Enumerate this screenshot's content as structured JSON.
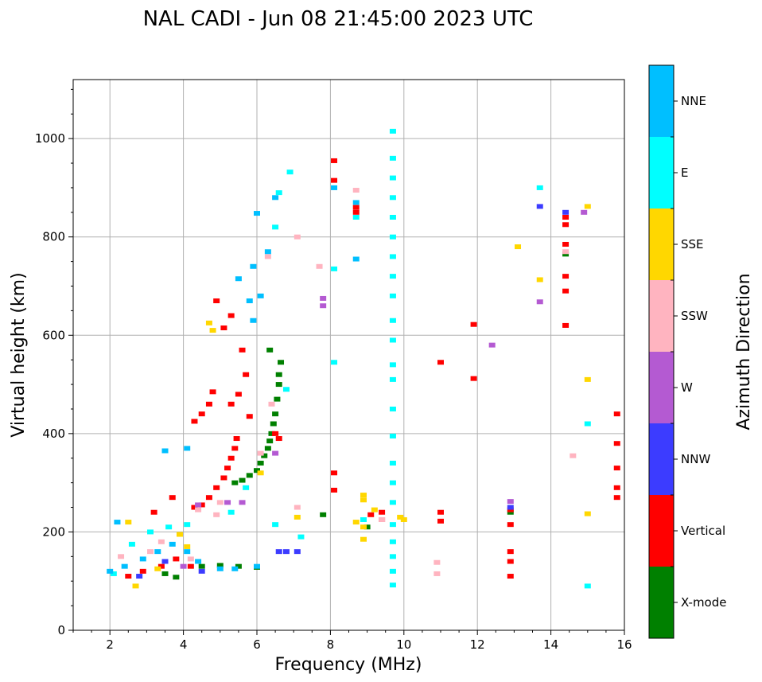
{
  "chart_data": {
    "type": "scatter",
    "title": "NAL CADI - Jun 08 21:45:00 2023 UTC",
    "xlabel": "Frequency (MHz)",
    "ylabel": "Virtual height (km)",
    "xlim": [
      1,
      16
    ],
    "ylim": [
      0,
      1120
    ],
    "xticks": [
      2,
      4,
      6,
      8,
      10,
      12,
      14,
      16
    ],
    "yticks": [
      0,
      200,
      400,
      600,
      800,
      1000
    ],
    "grid": true,
    "colorbar": {
      "label": "Azimuth Direction",
      "categories": [
        {
          "name": "X-mode",
          "color": "#008000"
        },
        {
          "name": "Vertical",
          "color": "#ff0000"
        },
        {
          "name": "NNW",
          "color": "#3c3cff"
        },
        {
          "name": "W",
          "color": "#b45ad2"
        },
        {
          "name": "SSW",
          "color": "#ffb4c0"
        },
        {
          "name": "SSE",
          "color": "#ffd700"
        },
        {
          "name": "E",
          "color": "#00ffff"
        },
        {
          "name": "NNE",
          "color": "#00bfff"
        }
      ]
    },
    "series": [
      {
        "name": "X-mode",
        "points": [
          [
            5.4,
            300
          ],
          [
            5.6,
            305
          ],
          [
            5.8,
            315
          ],
          [
            6.0,
            325
          ],
          [
            6.1,
            340
          ],
          [
            6.2,
            355
          ],
          [
            6.3,
            370
          ],
          [
            6.35,
            385
          ],
          [
            6.4,
            400
          ],
          [
            6.45,
            420
          ],
          [
            6.5,
            440
          ],
          [
            6.55,
            470
          ],
          [
            6.6,
            500
          ],
          [
            6.6,
            520
          ],
          [
            6.65,
            545
          ],
          [
            6.35,
            570
          ],
          [
            4.5,
            130
          ],
          [
            5.0,
            132
          ],
          [
            5.5,
            130
          ],
          [
            6.0,
            128
          ],
          [
            3.5,
            115
          ],
          [
            3.8,
            108
          ],
          [
            7.8,
            235
          ],
          [
            9.0,
            210
          ],
          [
            12.9,
            240
          ],
          [
            14.4,
            765
          ]
        ]
      },
      {
        "name": "Vertical",
        "points": [
          [
            4.3,
            250
          ],
          [
            4.5,
            255
          ],
          [
            4.7,
            270
          ],
          [
            4.9,
            290
          ],
          [
            5.1,
            310
          ],
          [
            5.2,
            330
          ],
          [
            5.3,
            350
          ],
          [
            5.4,
            370
          ],
          [
            5.45,
            390
          ],
          [
            4.3,
            425
          ],
          [
            4.5,
            440
          ],
          [
            4.7,
            460
          ],
          [
            4.8,
            485
          ],
          [
            5.3,
            460
          ],
          [
            5.5,
            480
          ],
          [
            5.7,
            520
          ],
          [
            5.3,
            640
          ],
          [
            5.1,
            615
          ],
          [
            4.9,
            670
          ],
          [
            5.6,
            570
          ],
          [
            5.8,
            435
          ],
          [
            3.7,
            270
          ],
          [
            3.2,
            240
          ],
          [
            2.5,
            110
          ],
          [
            2.9,
            120
          ],
          [
            3.4,
            130
          ],
          [
            3.8,
            145
          ],
          [
            4.2,
            130
          ],
          [
            6.5,
            400
          ],
          [
            6.6,
            390
          ],
          [
            8.1,
            320
          ],
          [
            8.1,
            285
          ],
          [
            8.1,
            915
          ],
          [
            8.1,
            955
          ],
          [
            8.7,
            850
          ],
          [
            8.7,
            860
          ],
          [
            9.1,
            235
          ],
          [
            9.4,
            225
          ],
          [
            9.4,
            240
          ],
          [
            11.0,
            240
          ],
          [
            11.0,
            222
          ],
          [
            11.9,
            512
          ],
          [
            11.9,
            622
          ],
          [
            11.0,
            545
          ],
          [
            12.9,
            245
          ],
          [
            12.9,
            215
          ],
          [
            12.9,
            160
          ],
          [
            12.9,
            140
          ],
          [
            12.9,
            110
          ],
          [
            14.4,
            840
          ],
          [
            14.4,
            825
          ],
          [
            14.4,
            785
          ],
          [
            14.4,
            720
          ],
          [
            14.4,
            690
          ],
          [
            14.4,
            620
          ],
          [
            15.8,
            440
          ],
          [
            15.8,
            380
          ],
          [
            15.8,
            330
          ],
          [
            15.8,
            290
          ],
          [
            15.8,
            270
          ]
        ]
      },
      {
        "name": "NNW",
        "points": [
          [
            6.6,
            160
          ],
          [
            6.8,
            160
          ],
          [
            7.1,
            160
          ],
          [
            2.8,
            110
          ],
          [
            3.5,
            140
          ],
          [
            4.5,
            120
          ],
          [
            13.7,
            862
          ],
          [
            14.4,
            850
          ],
          [
            12.9,
            250
          ]
        ]
      },
      {
        "name": "W",
        "points": [
          [
            4.0,
            130
          ],
          [
            5.2,
            260
          ],
          [
            5.6,
            260
          ],
          [
            12.4,
            580
          ],
          [
            13.7,
            668
          ],
          [
            14.9,
            850
          ],
          [
            12.9,
            262
          ],
          [
            7.8,
            675
          ],
          [
            7.8,
            660
          ],
          [
            6.5,
            360
          ],
          [
            4.4,
            255
          ]
        ]
      },
      {
        "name": "SSW",
        "points": [
          [
            2.3,
            150
          ],
          [
            3.1,
            160
          ],
          [
            4.2,
            145
          ],
          [
            4.4,
            245
          ],
          [
            5.0,
            260
          ],
          [
            6.1,
            360
          ],
          [
            6.4,
            460
          ],
          [
            7.1,
            250
          ],
          [
            7.7,
            740
          ],
          [
            8.7,
            895
          ],
          [
            9.4,
            225
          ],
          [
            10.9,
            115
          ],
          [
            10.9,
            138
          ],
          [
            14.4,
            770
          ],
          [
            14.6,
            355
          ],
          [
            6.3,
            760
          ],
          [
            7.1,
            800
          ],
          [
            4.9,
            235
          ],
          [
            3.4,
            180
          ]
        ]
      },
      {
        "name": "SSE",
        "points": [
          [
            2.5,
            220
          ],
          [
            2.7,
            90
          ],
          [
            3.9,
            195
          ],
          [
            4.8,
            610
          ],
          [
            4.7,
            625
          ],
          [
            6.1,
            320
          ],
          [
            7.1,
            230
          ],
          [
            8.7,
            220
          ],
          [
            8.9,
            265
          ],
          [
            8.9,
            275
          ],
          [
            8.9,
            210
          ],
          [
            8.9,
            185
          ],
          [
            9.2,
            245
          ],
          [
            9.9,
            230
          ],
          [
            10.0,
            225
          ],
          [
            13.1,
            780
          ],
          [
            13.7,
            713
          ],
          [
            15.0,
            862
          ],
          [
            15.0,
            510
          ],
          [
            15.0,
            237
          ],
          [
            3.3,
            125
          ],
          [
            4.1,
            170
          ]
        ]
      },
      {
        "name": "E",
        "points": [
          [
            2.1,
            115
          ],
          [
            2.6,
            175
          ],
          [
            3.1,
            200
          ],
          [
            3.6,
            210
          ],
          [
            4.1,
            215
          ],
          [
            5.3,
            240
          ],
          [
            5.7,
            290
          ],
          [
            6.5,
            215
          ],
          [
            6.8,
            490
          ],
          [
            6.5,
            820
          ],
          [
            6.6,
            890
          ],
          [
            6.9,
            932
          ],
          [
            8.1,
            545
          ],
          [
            8.1,
            735
          ],
          [
            9.7,
            1015
          ],
          [
            9.7,
            960
          ],
          [
            9.7,
            920
          ],
          [
            9.7,
            880
          ],
          [
            9.7,
            840
          ],
          [
            9.7,
            800
          ],
          [
            9.7,
            760
          ],
          [
            9.7,
            720
          ],
          [
            9.7,
            680
          ],
          [
            9.7,
            630
          ],
          [
            9.7,
            590
          ],
          [
            9.7,
            540
          ],
          [
            9.7,
            510
          ],
          [
            9.7,
            450
          ],
          [
            9.7,
            395
          ],
          [
            9.7,
            340
          ],
          [
            9.7,
            300
          ],
          [
            9.7,
            260
          ],
          [
            9.7,
            215
          ],
          [
            9.7,
            180
          ],
          [
            9.7,
            150
          ],
          [
            9.7,
            120
          ],
          [
            9.7,
            92
          ],
          [
            8.7,
            840
          ],
          [
            13.7,
            900
          ],
          [
            15.0,
            420
          ],
          [
            15.0,
            90
          ],
          [
            8.9,
            225
          ],
          [
            7.2,
            190
          ]
        ]
      },
      {
        "name": "NNE",
        "points": [
          [
            2.0,
            120
          ],
          [
            2.4,
            130
          ],
          [
            2.9,
            145
          ],
          [
            3.3,
            160
          ],
          [
            3.7,
            175
          ],
          [
            4.1,
            160
          ],
          [
            4.4,
            140
          ],
          [
            5.0,
            125
          ],
          [
            5.5,
            715
          ],
          [
            5.8,
            670
          ],
          [
            5.9,
            630
          ],
          [
            6.1,
            680
          ],
          [
            5.9,
            740
          ],
          [
            6.0,
            848
          ],
          [
            6.5,
            880
          ],
          [
            6.3,
            770
          ],
          [
            5.4,
            125
          ],
          [
            6.0,
            130
          ],
          [
            8.7,
            755
          ],
          [
            8.7,
            870
          ],
          [
            3.5,
            365
          ],
          [
            4.1,
            370
          ],
          [
            2.2,
            220
          ],
          [
            8.1,
            900
          ]
        ]
      }
    ]
  }
}
